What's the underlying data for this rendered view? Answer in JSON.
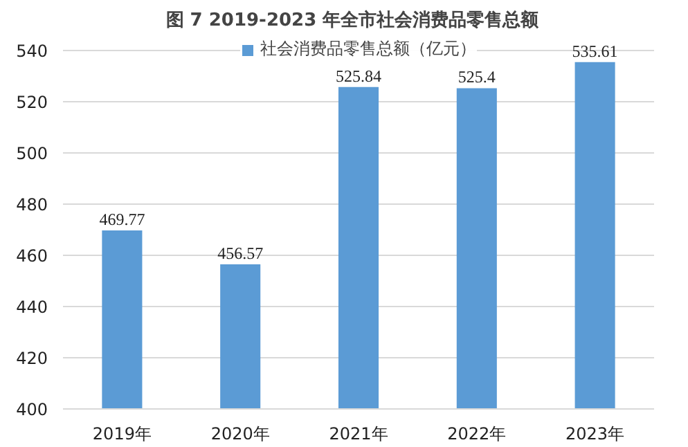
{
  "chart_data": {
    "type": "bar",
    "title": "图 7   2019-2023 年全市社会消费品零售总额",
    "categories": [
      "2019年",
      "2020年",
      "2021年",
      "2022年",
      "2023年"
    ],
    "series": [
      {
        "name": "社会消费品零售总额（亿元）",
        "color": "#5b9bd5",
        "values": [
          469.77,
          456.57,
          525.84,
          525.4,
          535.61
        ]
      }
    ],
    "ylim": [
      400,
      545
    ],
    "yticks": [
      400,
      420,
      440,
      460,
      480,
      500,
      520,
      540
    ],
    "grid": "y",
    "legend": "top",
    "data_labels": true
  }
}
